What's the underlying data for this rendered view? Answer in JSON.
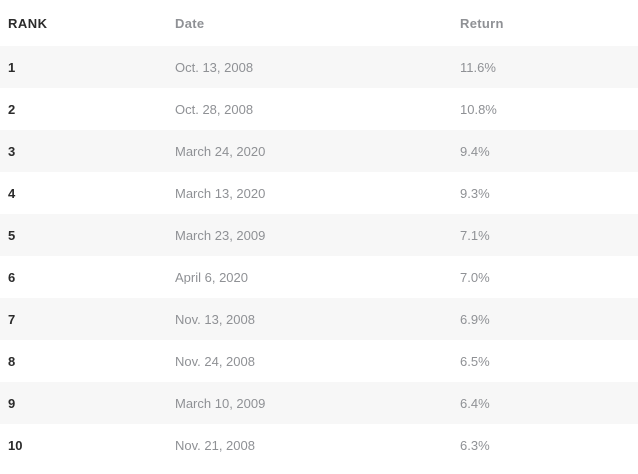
{
  "theme": {
    "background": "#ffffff",
    "stripe_color": "#f7f7f7",
    "dark_text_color": "#2b2b2b",
    "muted_text_color": "#8f9195"
  },
  "chart_data": {
    "type": "table",
    "title": "",
    "columns": [
      "RANK",
      "Date",
      "Return"
    ],
    "rows": [
      {
        "rank": "1",
        "date": "Oct. 13, 2008",
        "return": "11.6%"
      },
      {
        "rank": "2",
        "date": "Oct. 28, 2008",
        "return": "10.8%"
      },
      {
        "rank": "3",
        "date": "March 24, 2020",
        "return": "9.4%"
      },
      {
        "rank": "4",
        "date": "March 13, 2020",
        "return": "9.3%"
      },
      {
        "rank": "5",
        "date": "March 23, 2009",
        "return": "7.1%"
      },
      {
        "rank": "6",
        "date": "April 6, 2020",
        "return": "7.0%"
      },
      {
        "rank": "7",
        "date": "Nov. 13, 2008",
        "return": "6.9%"
      },
      {
        "rank": "8",
        "date": "Nov. 24, 2008",
        "return": "6.5%"
      },
      {
        "rank": "9",
        "date": "March 10, 2009",
        "return": "6.4%"
      },
      {
        "rank": "10",
        "date": "Nov. 21, 2008",
        "return": "6.3%"
      }
    ]
  }
}
